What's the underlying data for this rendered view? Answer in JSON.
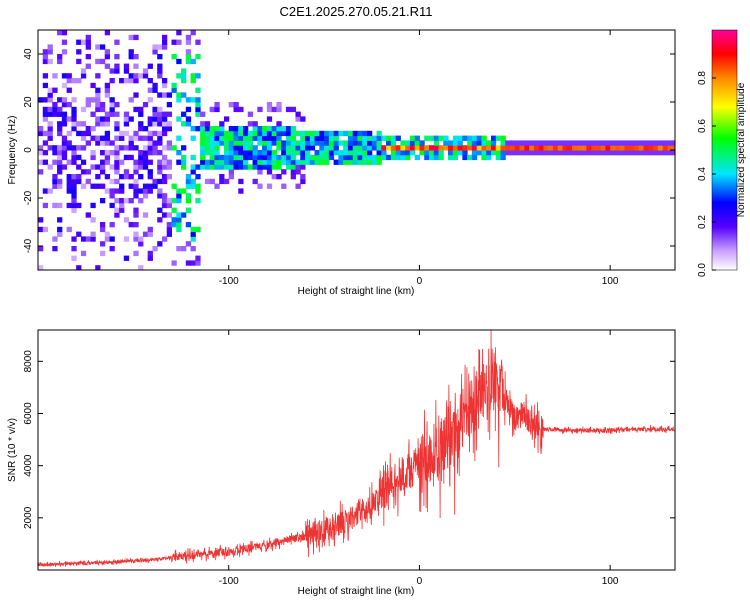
{
  "title": "C2E1.2025.270.05.21.R11",
  "chart_data": [
    {
      "type": "heatmap",
      "title": "C2E1.2025.270.05.21.R11",
      "xlabel": "Height of straight line (km)",
      "ylabel": "Frequency (Hz)",
      "xlim": [
        -200,
        134
      ],
      "ylim": [
        -50,
        50
      ],
      "xticks": [
        -100,
        0,
        100
      ],
      "xtick_labels": [
        "-100",
        "0",
        "100"
      ],
      "yticks": [
        -40,
        -20,
        0,
        20,
        40
      ],
      "ytick_labels": [
        "-40",
        "-20",
        "0",
        "20",
        "40"
      ],
      "colorbar": {
        "label": "Normalized spectral amplitude",
        "range": [
          0,
          1
        ],
        "ticks": [
          0,
          0.2,
          0.4,
          0.6,
          0.8
        ],
        "tick_labels": [
          "0.0",
          "0.2",
          "0.4",
          "0.6",
          "0.8"
        ],
        "colormap": [
          "#ffffff",
          "#8a2be2",
          "#0000ff",
          "#00ffff",
          "#00ff00",
          "#ffff00",
          "#ff7f00",
          "#ff0000",
          "#ff00ff"
        ]
      },
      "regions": [
        {
          "x_range": [
            -200,
            -130
          ],
          "freq_spread_hz": 50,
          "amplitude": 0.15,
          "description": "broadband scatter"
        },
        {
          "x_range": [
            -130,
            -20
          ],
          "freq_spread_hz": 10,
          "amplitude": 0.35
        },
        {
          "x_range": [
            -20,
            45
          ],
          "freq_spread_hz": 4,
          "amplitude": 0.75
        },
        {
          "x_range": [
            45,
            134
          ],
          "freq_spread_hz": 1,
          "amplitude": 0.95
        }
      ]
    },
    {
      "type": "line",
      "xlabel": "Height of straight line (km)",
      "ylabel": "SNR (10 * v/v)",
      "xlim": [
        -200,
        134
      ],
      "ylim": [
        0,
        9200
      ],
      "xticks": [
        -100,
        0,
        100
      ],
      "xtick_labels": [
        "-100",
        "0",
        "100"
      ],
      "yticks": [
        2000,
        4000,
        6000,
        8000
      ],
      "ytick_labels": [
        "2000",
        "4000",
        "6000",
        "8000"
      ],
      "color": "#ee3333",
      "series": [
        {
          "name": "SNR",
          "x": [
            -200,
            -180,
            -160,
            -140,
            -120,
            -100,
            -80,
            -60,
            -40,
            -25,
            -20,
            -10,
            0,
            10,
            20,
            30,
            40,
            45,
            50,
            55,
            60,
            65,
            80,
            100,
            120,
            134
          ],
          "y": [
            200,
            250,
            300,
            400,
            550,
            700,
            950,
            1300,
            1800,
            2500,
            3000,
            3600,
            4000,
            4700,
            5300,
            6400,
            7300,
            6600,
            5800,
            6000,
            5500,
            5400,
            5350,
            5350,
            5400,
            5400
          ]
        }
      ]
    }
  ]
}
